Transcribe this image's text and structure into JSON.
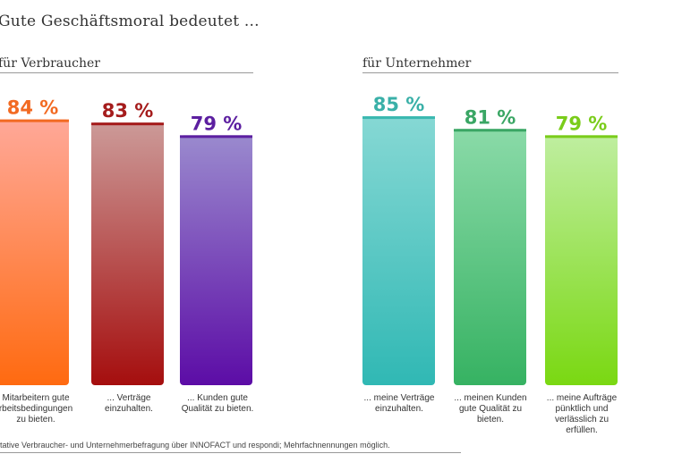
{
  "title": "Gute Geschäftsmoral bedeutet ...",
  "footnote": "itative Verbraucher- und Unternehmerbefragung über INNOFACT und respondi; Mehrfachnennungen möglich.",
  "chart_data": [
    {
      "type": "bar",
      "group_title": "für Verbraucher",
      "ylim": [
        0,
        100
      ],
      "categories": [
        "Mitarbeitern gute Arbeitsbedingungen zu bieten.",
        "... Verträge einzuhalten.",
        "... Kunden gute Qualität zu bieten."
      ],
      "values": [
        84,
        83,
        79
      ],
      "value_labels": [
        "84 %",
        "83 %",
        "79 %"
      ],
      "category_labels": [
        [
          "Mitarbeitern gute",
          "rbeitsbedingungen",
          "zu bieten."
        ],
        [
          "... Verträge",
          "einzuhalten."
        ],
        [
          "... Kunden gute",
          "Qualität zu bieten."
        ]
      ],
      "colors": [
        {
          "label": "#f26a22",
          "cap": "#f26a22",
          "top": "#ffa898",
          "bottom": "#ff6a10"
        },
        {
          "label": "#a51c1c",
          "cap": "#a51c1c",
          "top": "#cc9a98",
          "bottom": "#a50e0e"
        },
        {
          "label": "#5c1fa0",
          "cap": "#5c1fa0",
          "top": "#9a8ace",
          "bottom": "#5c0ca6"
        }
      ]
    },
    {
      "type": "bar",
      "group_title": "für Unternehmer",
      "ylim": [
        0,
        100
      ],
      "categories": [
        "... meine Verträge einzuhalten.",
        "... meinen Kunden gute Qualität zu bieten.",
        "... meine Aufträge pünktlich und verlässlich zu erfüllen."
      ],
      "values": [
        85,
        81,
        79
      ],
      "value_labels": [
        "85 %",
        "81 %",
        "79 %"
      ],
      "category_labels": [
        [
          "... meine Verträge",
          "einzuhalten."
        ],
        [
          "... meinen Kunden",
          "gute Qualität zu",
          "bieten."
        ],
        [
          "... meine Aufträge",
          "pünktlich und",
          "verlässlich zu",
          "erfüllen."
        ]
      ],
      "colors": [
        {
          "label": "#3ab0a8",
          "cap": "#3ab8b0",
          "top": "#86d8d4",
          "bottom": "#30b8b4"
        },
        {
          "label": "#3aa664",
          "cap": "#3aa664",
          "top": "#8adaa8",
          "bottom": "#36b262"
        },
        {
          "label": "#7acc1a",
          "cap": "#7acc1a",
          "top": "#bfeea0",
          "bottom": "#7ad812"
        }
      ]
    }
  ]
}
